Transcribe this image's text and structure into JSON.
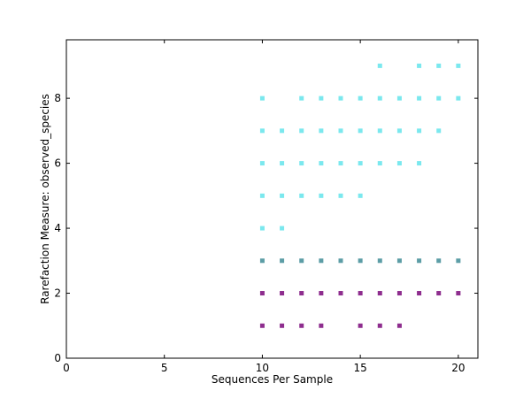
{
  "chart_data": {
    "type": "scatter",
    "title": "",
    "xlabel": "Sequences Per Sample",
    "ylabel": "Rarefaction Measure: observed_species",
    "xlim": [
      0,
      21
    ],
    "ylim": [
      0,
      9.8
    ],
    "xticks": [
      0,
      5,
      10,
      15,
      20
    ],
    "yticks": [
      0,
      2,
      4,
      6,
      8
    ],
    "grid": false,
    "legend": "none",
    "marker": "square",
    "series": [
      {
        "color": "#7be8ee",
        "points": [
          [
            10,
            8
          ],
          [
            12,
            8
          ],
          [
            13,
            8
          ],
          [
            14,
            8
          ],
          [
            15,
            8
          ],
          [
            16,
            8
          ],
          [
            17,
            8
          ],
          [
            18,
            8
          ],
          [
            19,
            8
          ],
          [
            20,
            8
          ],
          [
            16,
            9
          ],
          [
            18,
            9
          ],
          [
            19,
            9
          ],
          [
            20,
            9
          ]
        ]
      },
      {
        "color": "#7be8ee",
        "points": [
          [
            10,
            7
          ],
          [
            11,
            7
          ],
          [
            12,
            7
          ],
          [
            13,
            7
          ],
          [
            14,
            7
          ],
          [
            15,
            7
          ],
          [
            16,
            7
          ],
          [
            17,
            7
          ],
          [
            18,
            7
          ],
          [
            19,
            7
          ]
        ]
      },
      {
        "color": "#7be8ee",
        "points": [
          [
            10,
            6
          ],
          [
            11,
            6
          ],
          [
            12,
            6
          ],
          [
            13,
            6
          ],
          [
            14,
            6
          ],
          [
            15,
            6
          ],
          [
            16,
            6
          ],
          [
            17,
            6
          ],
          [
            18,
            6
          ]
        ]
      },
      {
        "color": "#7be8ee",
        "points": [
          [
            10,
            5
          ],
          [
            11,
            5
          ],
          [
            12,
            5
          ],
          [
            13,
            5
          ],
          [
            14,
            5
          ],
          [
            15,
            5
          ],
          [
            10,
            4
          ],
          [
            11,
            4
          ]
        ]
      },
      {
        "color": "#5c9da6",
        "points": [
          [
            10,
            3
          ],
          [
            11,
            3
          ],
          [
            12,
            3
          ],
          [
            13,
            3
          ],
          [
            14,
            3
          ],
          [
            15,
            3
          ],
          [
            16,
            3
          ],
          [
            17,
            3
          ],
          [
            18,
            3
          ],
          [
            19,
            3
          ],
          [
            20,
            3
          ]
        ]
      },
      {
        "color": "#8e2d8e",
        "points": [
          [
            10,
            2
          ],
          [
            11,
            2
          ],
          [
            12,
            2
          ],
          [
            13,
            2
          ],
          [
            14,
            2
          ],
          [
            15,
            2
          ],
          [
            16,
            2
          ],
          [
            17,
            2
          ],
          [
            18,
            2
          ],
          [
            19,
            2
          ],
          [
            20,
            2
          ]
        ]
      },
      {
        "color": "#8e2d8e",
        "points": [
          [
            10,
            1
          ],
          [
            11,
            1
          ],
          [
            12,
            1
          ],
          [
            13,
            1
          ],
          [
            15,
            1
          ],
          [
            16,
            1
          ],
          [
            17,
            1
          ]
        ]
      }
    ]
  }
}
